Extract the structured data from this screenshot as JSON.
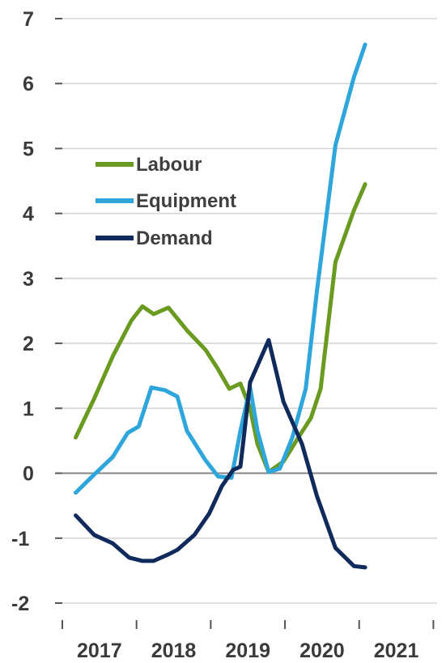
{
  "chart_data": {
    "type": "line",
    "title": "",
    "xlabel": "",
    "ylabel": "",
    "ylim": [
      -2,
      7
    ],
    "xlim": [
      2016.9,
      2021.95
    ],
    "grid": true,
    "legend_position": "left",
    "y_ticks": [
      7,
      6,
      5,
      4,
      3,
      2,
      1,
      0,
      -1,
      -2
    ],
    "y_tick_labels": [
      "7",
      "6",
      "5",
      "4",
      "3",
      "2",
      "1",
      "0",
      "-1",
      "-2"
    ],
    "x_tick_positions": [
      2016.9,
      2017.9,
      2018.9,
      2019.9,
      2020.9,
      2021.9
    ],
    "x_category_labels": [
      "2017",
      "2018",
      "2019",
      "2020",
      "2021"
    ],
    "colors": {
      "Labour": "#6a9a1f",
      "Equipment": "#2ea5db",
      "Demand": "#102a5c",
      "grid": "#d6d6d6",
      "zero_line": "#8a8a8a"
    },
    "series": [
      {
        "name": "Labour",
        "color": "#6a9a1f",
        "points": [
          [
            2017.08,
            0.55
          ],
          [
            2017.33,
            1.15
          ],
          [
            2017.58,
            1.8
          ],
          [
            2017.83,
            2.35
          ],
          [
            2017.98,
            2.57
          ],
          [
            2018.13,
            2.45
          ],
          [
            2018.33,
            2.55
          ],
          [
            2018.58,
            2.2
          ],
          [
            2018.83,
            1.9
          ],
          [
            2019.0,
            1.6
          ],
          [
            2019.15,
            1.3
          ],
          [
            2019.3,
            1.38
          ],
          [
            2019.43,
            1.0
          ],
          [
            2019.53,
            0.45
          ],
          [
            2019.68,
            0.02
          ],
          [
            2019.88,
            0.18
          ],
          [
            2020.08,
            0.55
          ],
          [
            2020.25,
            0.85
          ],
          [
            2020.38,
            1.3
          ],
          [
            2020.58,
            3.25
          ],
          [
            2020.83,
            4.05
          ],
          [
            2020.98,
            4.45
          ]
        ]
      },
      {
        "name": "Equipment",
        "color": "#2ea5db",
        "points": [
          [
            2017.08,
            -0.3
          ],
          [
            2017.33,
            -0.02
          ],
          [
            2017.58,
            0.25
          ],
          [
            2017.78,
            0.62
          ],
          [
            2017.93,
            0.72
          ],
          [
            2018.1,
            1.32
          ],
          [
            2018.28,
            1.28
          ],
          [
            2018.45,
            1.18
          ],
          [
            2018.58,
            0.65
          ],
          [
            2018.83,
            0.2
          ],
          [
            2019.0,
            -0.05
          ],
          [
            2019.18,
            -0.07
          ],
          [
            2019.3,
            0.65
          ],
          [
            2019.43,
            1.32
          ],
          [
            2019.53,
            0.65
          ],
          [
            2019.68,
            0.02
          ],
          [
            2019.83,
            0.07
          ],
          [
            2020.0,
            0.55
          ],
          [
            2020.18,
            1.3
          ],
          [
            2020.33,
            2.8
          ],
          [
            2020.58,
            5.05
          ],
          [
            2020.83,
            6.1
          ],
          [
            2020.98,
            6.6
          ]
        ]
      },
      {
        "name": "Demand",
        "color": "#102a5c",
        "points": [
          [
            2017.08,
            -0.65
          ],
          [
            2017.33,
            -0.95
          ],
          [
            2017.58,
            -1.08
          ],
          [
            2017.8,
            -1.3
          ],
          [
            2017.98,
            -1.35
          ],
          [
            2018.13,
            -1.35
          ],
          [
            2018.33,
            -1.25
          ],
          [
            2018.45,
            -1.18
          ],
          [
            2018.68,
            -0.95
          ],
          [
            2018.88,
            -0.62
          ],
          [
            2019.05,
            -0.2
          ],
          [
            2019.2,
            0.05
          ],
          [
            2019.3,
            0.1
          ],
          [
            2019.43,
            1.4
          ],
          [
            2019.68,
            2.05
          ],
          [
            2019.88,
            1.1
          ],
          [
            2020.13,
            0.45
          ],
          [
            2020.33,
            -0.35
          ],
          [
            2020.58,
            -1.15
          ],
          [
            2020.83,
            -1.43
          ],
          [
            2020.98,
            -1.45
          ]
        ]
      }
    ]
  }
}
